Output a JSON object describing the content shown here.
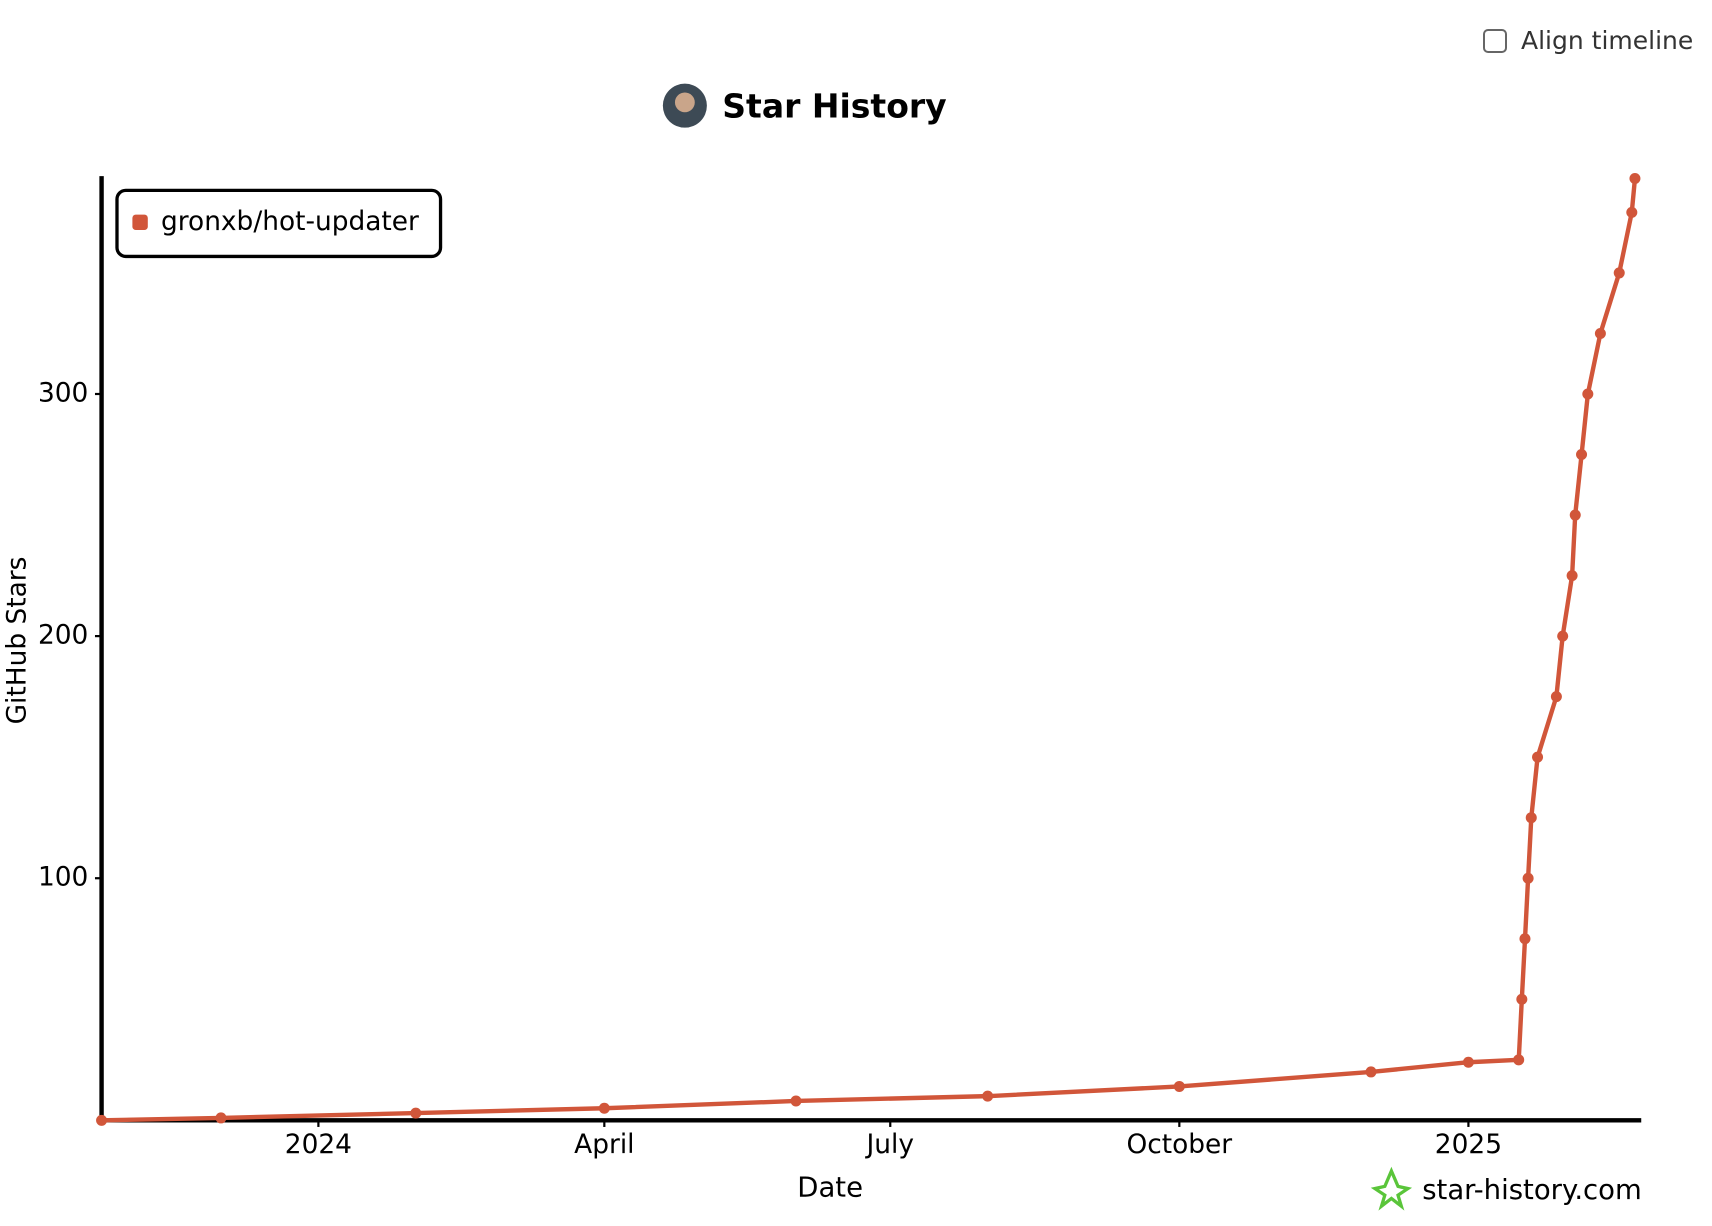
{
  "controls": {
    "align_timeline": "Align timeline"
  },
  "watermark": "star-history.com",
  "chart_data": {
    "type": "line",
    "title": "Star History",
    "x_label": "Date",
    "y_label": "GitHub Stars",
    "xlim": [
      "2023-10-24",
      "2025-02-25"
    ],
    "xticks": [
      {
        "value": "2024-01-01",
        "label": "2024"
      },
      {
        "value": "2024-04-01",
        "label": "April"
      },
      {
        "value": "2024-07-01",
        "label": "July"
      },
      {
        "value": "2024-10-01",
        "label": "October"
      },
      {
        "value": "2025-01-01",
        "label": "2025"
      }
    ],
    "ylim": [
      0,
      390
    ],
    "yticks": [
      100,
      200,
      300
    ],
    "legend": "top-left",
    "x": [
      "2023-10-24",
      "2023-12-01",
      "2024-02-01",
      "2024-04-01",
      "2024-06-01",
      "2024-08-01",
      "2024-10-01",
      "2024-12-01",
      "2025-01-01",
      "2025-01-17",
      "2025-01-18",
      "2025-01-19",
      "2025-01-20",
      "2025-01-21",
      "2025-01-23",
      "2025-01-29",
      "2025-01-31",
      "2025-02-03",
      "2025-02-04",
      "2025-02-06",
      "2025-02-08",
      "2025-02-12",
      "2025-02-18",
      "2025-02-22",
      "2025-02-23"
    ],
    "series": [
      {
        "name": "gronxb/hot-updater",
        "color": "#d1563a",
        "values": [
          0,
          1,
          3,
          5,
          8,
          10,
          14,
          20,
          24,
          25,
          50,
          75,
          100,
          125,
          150,
          175,
          200,
          225,
          250,
          275,
          300,
          325,
          350,
          375,
          389
        ]
      }
    ]
  }
}
